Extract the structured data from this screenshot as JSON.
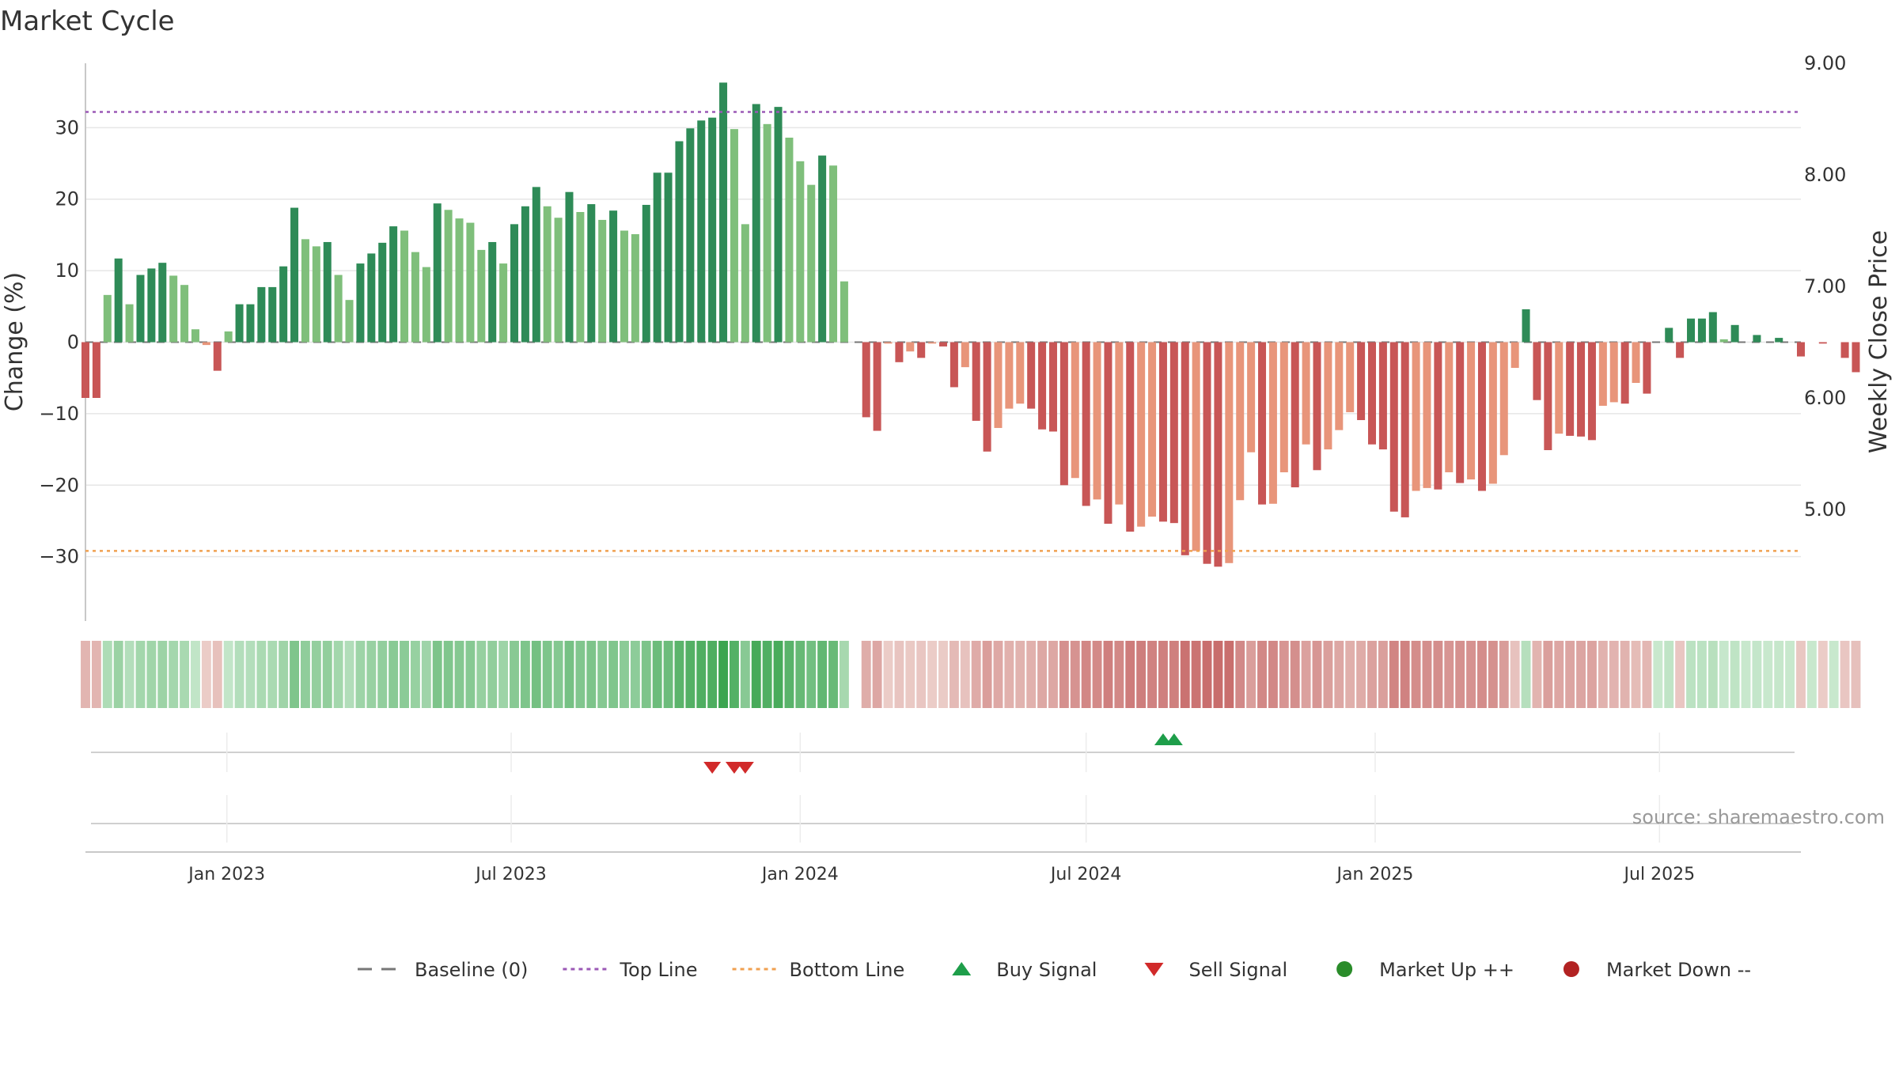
{
  "chart_data": {
    "type": "bar",
    "title": "Market Cycle",
    "ylabel_left": "Change (%)",
    "ylabel_right": "Weekly Close Price",
    "source": "source: sharemaestro.com",
    "ylim": [
      -39,
      39
    ],
    "yticks": [
      30,
      20,
      10,
      0,
      -10,
      -20,
      -30
    ],
    "ytick_labels": [
      "30",
      "20",
      "10",
      "0",
      "−10",
      "−20",
      "−30"
    ],
    "right_ylim": [
      4.0,
      9.0
    ],
    "right_yticks": [
      "9.00",
      "8.00",
      "7.00",
      "6.00",
      "5.00"
    ],
    "top_line": 32.2,
    "bottom_line": -29.2,
    "x_start": "2022-10-03",
    "x_end": "2025-09-29",
    "xticks": [
      {
        "date": "2023-01-01",
        "label": "Jan 2023"
      },
      {
        "date": "2023-07-01",
        "label": "Jul 2023"
      },
      {
        "date": "2024-01-01",
        "label": "Jan 2024"
      },
      {
        "date": "2024-07-01",
        "label": "Jul 2024"
      },
      {
        "date": "2025-01-01",
        "label": "Jan 2025"
      },
      {
        "date": "2025-07-01",
        "label": "Jul 2025"
      }
    ],
    "first_bar_date": "2022-10-03",
    "values": [
      -7.8,
      -7.8,
      6.6,
      11.7,
      5.3,
      9.4,
      10.3,
      11.1,
      9.3,
      8.0,
      1.8,
      -0.4,
      -4.0,
      1.5,
      5.3,
      5.3,
      7.7,
      7.7,
      10.6,
      18.8,
      14.4,
      13.4,
      14.0,
      9.4,
      5.9,
      11.0,
      12.4,
      13.9,
      16.2,
      15.6,
      12.6,
      10.5,
      19.4,
      18.5,
      17.3,
      16.7,
      12.9,
      14.0,
      11.0,
      16.5,
      19.0,
      21.7,
      19.0,
      17.4,
      21.0,
      18.2,
      19.3,
      17.1,
      18.4,
      15.6,
      15.1,
      19.2,
      23.7,
      23.7,
      28.1,
      29.9,
      31.0,
      31.4,
      36.3,
      29.8,
      16.5,
      33.3,
      30.5,
      32.9,
      28.6,
      25.3,
      22.0,
      26.1,
      24.7,
      8.5,
      0,
      -10.5,
      -12.4,
      -0.2,
      -2.8,
      -1.3,
      -2.2,
      -0.2,
      -0.6,
      -6.3,
      -3.5,
      -11.0,
      -15.3,
      -12.0,
      -9.3,
      -8.6,
      -9.3,
      -12.2,
      -12.5,
      -20.0,
      -19.0,
      -22.9,
      -22.0,
      -25.4,
      -22.7,
      -26.5,
      -25.8,
      -24.4,
      -25.1,
      -25.3,
      -29.8,
      -29.2,
      -31.0,
      -31.4,
      -30.9,
      -22.1,
      -15.4,
      -22.7,
      -22.6,
      -18.2,
      -20.3,
      -14.3,
      -17.9,
      -15.0,
      -12.3,
      -9.8,
      -10.9,
      -14.3,
      -15.0,
      -23.7,
      -24.5,
      -20.8,
      -20.4,
      -20.6,
      -18.2,
      -19.7,
      -19.2,
      -20.8,
      -19.8,
      -15.8,
      -3.6,
      4.6,
      -8.1,
      -15.1,
      -12.8,
      -13.1,
      -13.2,
      -13.7,
      -8.9,
      -8.4,
      -8.6,
      -5.7,
      -7.2,
      0,
      2.0,
      -2.2,
      3.3,
      3.3,
      4.2,
      0.4,
      2.4,
      0,
      1.0,
      0,
      0.6,
      0,
      -2.0,
      0,
      -0.2,
      0,
      -2.2,
      -4.2
    ],
    "buy_signals": [
      "2024-08-19",
      "2024-08-26"
    ],
    "sell_signals": [
      "2023-11-06",
      "2023-11-20",
      "2023-11-27"
    ],
    "legend_position": "bottom-center",
    "colors": {
      "up_strong": "#2e8b57",
      "up_light": "#7fbf7b",
      "down_strong": "#c85656",
      "down_light": "#e8957a",
      "top_line": "#9b59b6",
      "bottom_line": "#f0a050",
      "baseline": "#777777",
      "buy": "#1e9e4a",
      "sell": "#d12a2a",
      "market_up": "#2a8c2a",
      "market_down": "#b22222",
      "grid": "#e6e6e6",
      "axis": "#c8c8c8"
    },
    "legend": [
      {
        "key": "baseline",
        "label": "Baseline (0)"
      },
      {
        "key": "top",
        "label": "Top Line"
      },
      {
        "key": "bottom",
        "label": "Bottom Line"
      },
      {
        "key": "buy",
        "label": "Buy Signal"
      },
      {
        "key": "sell",
        "label": "Sell Signal"
      },
      {
        "key": "up",
        "label": "Market Up ++"
      },
      {
        "key": "down",
        "label": "Market Down --"
      }
    ]
  }
}
